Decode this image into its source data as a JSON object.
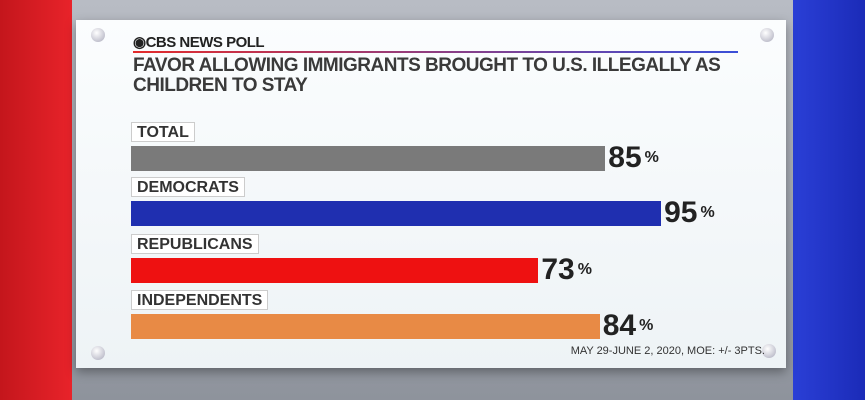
{
  "header": {
    "logo": "CBS NEWS POLL",
    "title": "FAVOR ALLOWING IMMIGRANTS BROUGHT TO U.S. ILLEGALLY AS CHILDREN TO STAY"
  },
  "footer": {
    "note": "MAY 29-JUNE 2, 2020, MOE: +/- 3PTS."
  },
  "chart_data": {
    "type": "bar",
    "orientation": "horizontal",
    "title": "FAVOR ALLOWING IMMIGRANTS BROUGHT TO U.S. ILLEGALLY AS CHILDREN TO STAY",
    "categories": [
      "TOTAL",
      "DEMOCRATS",
      "REPUBLICANS",
      "INDEPENDENTS"
    ],
    "values": [
      85,
      95,
      73,
      84
    ],
    "unit": "%",
    "colors": [
      "#7a7a7a",
      "#1f2fb0",
      "#ee1111",
      "#e88a45"
    ],
    "xlim": [
      0,
      100
    ],
    "grid": false
  }
}
